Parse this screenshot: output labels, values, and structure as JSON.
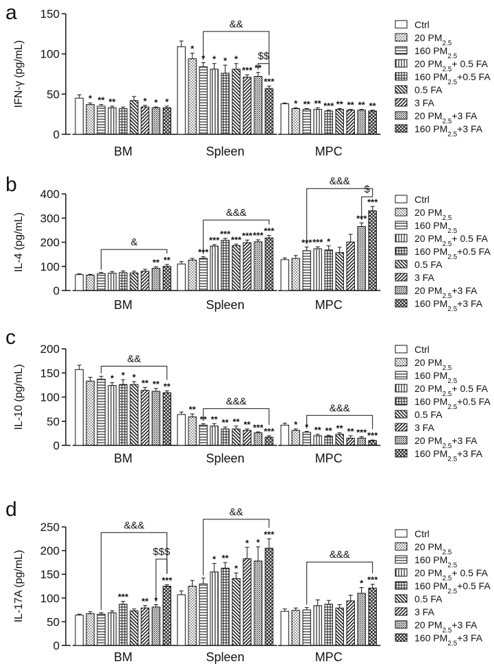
{
  "legend_entries": [
    {
      "pattern": "blank",
      "label": "Ctrl"
    },
    {
      "pattern": "dots",
      "label": "20  PM",
      "sub": "2.5",
      "tail": ""
    },
    {
      "pattern": "hlines",
      "label": "160  PM",
      "sub": "2.5",
      "tail": ""
    },
    {
      "pattern": "vlines",
      "label": "20 PM",
      "sub": "2.5",
      "tail": "+ 0.5 FA"
    },
    {
      "pattern": "grid",
      "label": "160 PM",
      "sub": "2.5",
      "tail": "+0.5 FA"
    },
    {
      "pattern": "back",
      "label": "0.5 FA"
    },
    {
      "pattern": "fwd",
      "label": "3 FA"
    },
    {
      "pattern": "dense",
      "label": "20 PM",
      "sub": "2.5",
      "tail": "+3 FA"
    },
    {
      "pattern": "cross",
      "label": "160 PM",
      "sub": "2.5",
      "tail": "+3 FA"
    }
  ],
  "chart_data": [
    {
      "type": "bar",
      "panel_letter": "a",
      "ylabel": "IFN-γ  (pg/mL)",
      "ylim": [
        0,
        150
      ],
      "yticks": [
        0,
        50,
        100,
        150
      ],
      "categories": [
        "BM",
        "Spleen",
        "MPC"
      ],
      "values": [
        [
          45,
          37,
          35,
          33,
          32,
          42,
          34,
          33,
          33
        ],
        [
          109,
          94,
          84,
          81,
          76,
          81,
          71,
          72,
          57
        ],
        [
          38,
          32,
          31,
          31,
          29,
          31,
          30,
          30,
          29
        ]
      ],
      "errors": [
        [
          4,
          2,
          2,
          2,
          2,
          5,
          2,
          1,
          2
        ],
        [
          7,
          7,
          5,
          7,
          10,
          7,
          3,
          5,
          3
        ],
        [
          1,
          1,
          1,
          2,
          1,
          1,
          1,
          1,
          1
        ]
      ],
      "stars": [
        [
          "",
          "*",
          "**",
          "**",
          "",
          "",
          "*",
          "*",
          "*"
        ],
        [
          "",
          "*",
          "*",
          "*",
          "*",
          "*",
          "***",
          "**",
          "***"
        ],
        [
          "",
          "*",
          "**",
          "**",
          "***",
          "**",
          "**",
          "**",
          "**"
        ]
      ],
      "brackets": [
        {
          "group": 1,
          "from": 2,
          "to": 8,
          "y": 128,
          "label": "&&"
        },
        {
          "group": 1,
          "from": 7,
          "to": 8,
          "y": 88,
          "label": "$$"
        }
      ]
    },
    {
      "type": "bar",
      "panel_letter": "b",
      "ylabel": "IL-4 (pg/mL)",
      "ylim": [
        0,
        400
      ],
      "yticks": [
        0,
        100,
        200,
        300,
        400
      ],
      "categories": [
        "BM",
        "Spleen",
        "MPC"
      ],
      "values": [
        [
          66,
          64,
          70,
          72,
          74,
          73,
          80,
          92,
          100
        ],
        [
          110,
          126,
          133,
          184,
          208,
          186,
          198,
          202,
          218
        ],
        [
          128,
          133,
          165,
          173,
          168,
          157,
          201,
          265,
          330
        ]
      ],
      "errors": [
        [
          3,
          3,
          5,
          7,
          7,
          7,
          8,
          6,
          8
        ],
        [
          10,
          7,
          7,
          6,
          8,
          6,
          11,
          8,
          10
        ],
        [
          7,
          12,
          15,
          8,
          17,
          22,
          32,
          15,
          18
        ]
      ],
      "stars": [
        [
          "",
          "",
          "",
          "",
          "",
          "",
          "",
          "**",
          "**"
        ],
        [
          "",
          "",
          "***",
          "***",
          "***",
          "***",
          "***",
          "***",
          "***"
        ],
        [
          "",
          "",
          "***",
          "***",
          "*",
          "",
          "",
          "***",
          "***"
        ]
      ],
      "brackets": [
        {
          "group": 0,
          "from": 2,
          "to": 8,
          "y": 170,
          "label": "&"
        },
        {
          "group": 1,
          "from": 2,
          "to": 8,
          "y": 292,
          "label": "&&&"
        },
        {
          "group": 2,
          "from": 2,
          "to": 8,
          "y": 422,
          "label": "&&&"
        },
        {
          "group": 2,
          "from": 7,
          "to": 8,
          "y": 388,
          "label": "$"
        }
      ]
    },
    {
      "type": "bar",
      "panel_letter": "c",
      "ylabel": "IL-10 (pg/mL)",
      "ylim": [
        0,
        200
      ],
      "yticks": [
        0,
        50,
        100,
        150,
        200
      ],
      "categories": [
        "BM",
        "Spleen",
        "MPC"
      ],
      "values": [
        [
          157,
          133,
          137,
          124,
          126,
          126,
          114,
          112,
          109
        ],
        [
          64,
          59,
          42,
          40,
          34,
          34,
          31,
          26,
          17
        ],
        [
          42,
          31,
          27,
          20,
          19,
          23,
          15,
          15,
          10
        ]
      ],
      "errors": [
        [
          9,
          8,
          6,
          6,
          10,
          6,
          6,
          6,
          4
        ],
        [
          5,
          6,
          3,
          5,
          4,
          6,
          3,
          2,
          3
        ],
        [
          4,
          3,
          2,
          3,
          2,
          3,
          5,
          3,
          1
        ]
      ],
      "stars": [
        [
          "",
          "",
          "",
          "*",
          "*",
          "*",
          "**",
          "**",
          "**"
        ],
        [
          "",
          "**",
          "**",
          "**",
          "**",
          "**",
          "**",
          "***",
          "***"
        ],
        [
          "",
          "*",
          "*",
          "**",
          "**",
          "**",
          "**",
          "***",
          "***"
        ]
      ],
      "brackets": [
        {
          "group": 0,
          "from": 2,
          "to": 8,
          "y": 164,
          "label": "&&"
        },
        {
          "group": 1,
          "from": 2,
          "to": 8,
          "y": 76,
          "label": "&&&"
        },
        {
          "group": 2,
          "from": 2,
          "to": 8,
          "y": 62,
          "label": "&&&"
        }
      ]
    },
    {
      "type": "bar",
      "panel_letter": "d",
      "ylabel": "IL-17A (pg/mL)",
      "ylim": [
        0,
        250
      ],
      "yticks": [
        0,
        50,
        100,
        150,
        200,
        250
      ],
      "categories": [
        "BM",
        "Spleen",
        "MPC"
      ],
      "values": [
        [
          64,
          67,
          66,
          69,
          87,
          73,
          79,
          81,
          125
        ],
        [
          107,
          125,
          130,
          155,
          163,
          141,
          183,
          178,
          205
        ],
        [
          72,
          74,
          75,
          84,
          87,
          79,
          94,
          110,
          121
        ]
      ],
      "errors": [
        [
          2,
          4,
          3,
          4,
          6,
          4,
          5,
          5,
          3
        ],
        [
          8,
          12,
          12,
          18,
          12,
          12,
          24,
          30,
          20
        ],
        [
          5,
          5,
          5,
          12,
          8,
          7,
          12,
          12,
          8
        ]
      ],
      "stars": [
        [
          "",
          "",
          "",
          "",
          "***",
          "",
          "**",
          "*",
          "***"
        ],
        [
          "",
          "",
          "",
          "*",
          "**",
          "*",
          "*",
          "*",
          "***"
        ],
        [
          "",
          "",
          "",
          "",
          "",
          "",
          "",
          "*",
          "***"
        ]
      ],
      "brackets": [
        {
          "group": 0,
          "from": 2,
          "to": 8,
          "y": 238,
          "label": "&&&"
        },
        {
          "group": 0,
          "from": 7,
          "to": 8,
          "y": 182,
          "label": "$$$"
        },
        {
          "group": 1,
          "from": 2,
          "to": 8,
          "y": 266,
          "label": "&&"
        },
        {
          "group": 2,
          "from": 2,
          "to": 8,
          "y": 176,
          "label": "&&&"
        }
      ]
    }
  ]
}
